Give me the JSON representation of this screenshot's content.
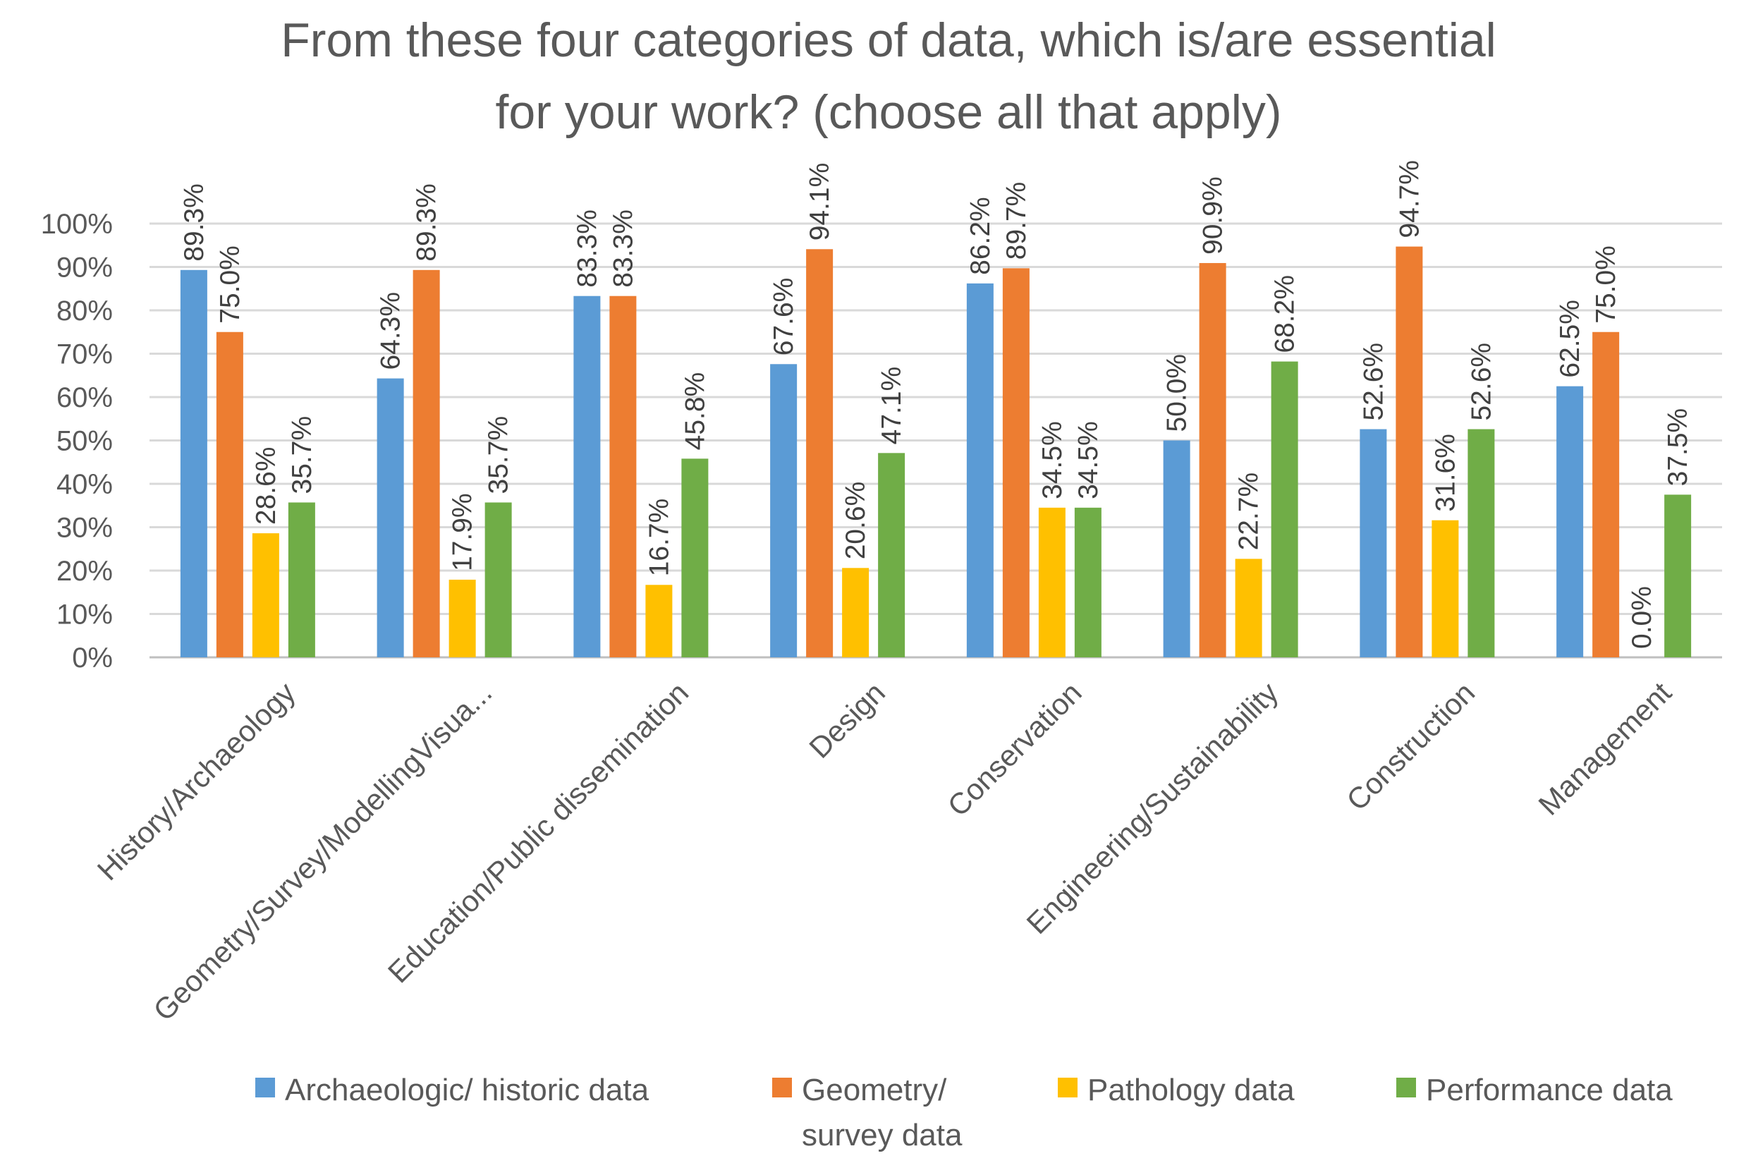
{
  "chart_data": {
    "type": "bar",
    "title": "From these four categories of data, which is/are essential for your work? (choose all that apply)",
    "title_lines": [
      "From these four categories of data, which is/are essential",
      "for your work? (choose all that apply)"
    ],
    "categories": [
      "History/Archaeology",
      "Geometry/Survey/ModellingVisua...",
      "Education/Public dissemination",
      "Design",
      "Conservation",
      "Engineering/Sustainability",
      "Construction",
      "Management"
    ],
    "series": [
      {
        "name": "Archaeologic/ historic data",
        "legend_lines": [
          "Archaeologic/ historic data"
        ],
        "color": "#5b9bd5",
        "values": [
          89.3,
          64.3,
          83.3,
          67.6,
          86.2,
          50.0,
          52.6,
          62.5
        ]
      },
      {
        "name": "Geometry/ survey data",
        "legend_lines": [
          "Geometry/",
          "survey data"
        ],
        "color": "#ed7d31",
        "values": [
          75.0,
          89.3,
          83.3,
          94.1,
          89.7,
          90.9,
          94.7,
          75.0
        ]
      },
      {
        "name": "Pathology data",
        "legend_lines": [
          "Pathology data"
        ],
        "color": "#ffc000",
        "values": [
          28.6,
          17.9,
          16.7,
          20.6,
          34.5,
          22.7,
          31.6,
          0.0
        ]
      },
      {
        "name": "Performance data",
        "legend_lines": [
          "Performance data"
        ],
        "color": "#70ad47",
        "values": [
          35.7,
          35.7,
          45.8,
          47.1,
          34.5,
          68.2,
          52.6,
          37.5
        ]
      }
    ],
    "ylim": [
      0,
      100
    ],
    "yticks": [
      0,
      10,
      20,
      30,
      40,
      50,
      60,
      70,
      80,
      90,
      100
    ],
    "y_tick_suffix": "%",
    "data_label_format": "one-decimal-percent",
    "xlabel": "",
    "ylabel": "",
    "grid": true,
    "legend_position": "bottom"
  }
}
